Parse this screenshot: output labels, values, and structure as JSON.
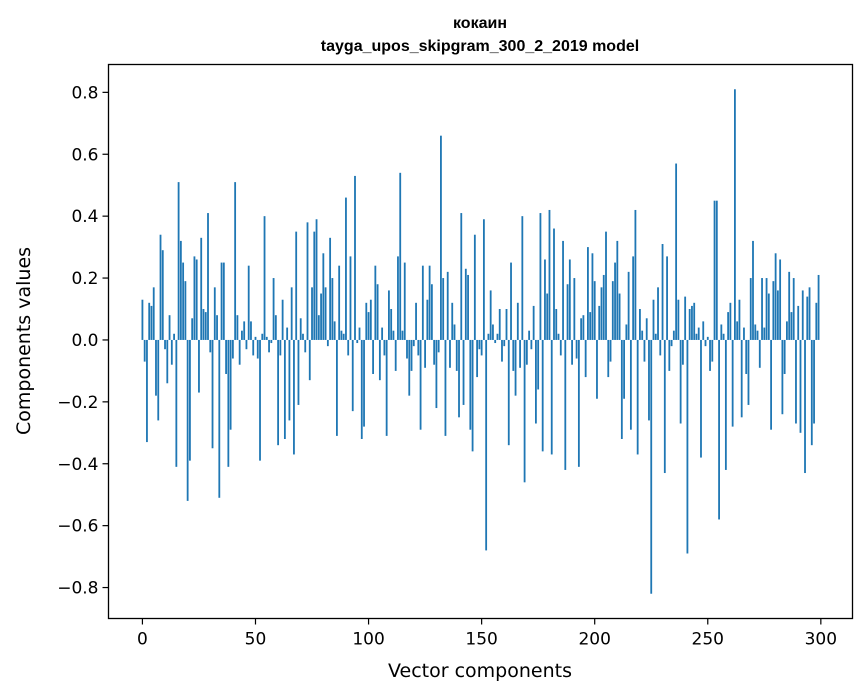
{
  "chart_data": {
    "type": "bar",
    "title": "кокаин",
    "subtitle": "tayga_upos_skipgram_300_2_2019 model",
    "xlabel": "Vector components",
    "ylabel": "Components values",
    "xlim": [
      -15,
      314
    ],
    "ylim": [
      -0.9,
      0.89
    ],
    "xticks": [
      0,
      50,
      100,
      150,
      200,
      250,
      300
    ],
    "xtick_labels": [
      "0",
      "50",
      "100",
      "150",
      "200",
      "250",
      "300"
    ],
    "yticks": [
      -0.8,
      -0.6,
      -0.4,
      -0.2,
      0.0,
      0.2,
      0.4,
      0.6,
      0.8
    ],
    "ytick_labels": [
      "−0.8",
      "−0.6",
      "−0.4",
      "−0.2",
      "0.0",
      "0.2",
      "0.4",
      "0.6",
      "0.8"
    ],
    "bar_color": "#1f77b4",
    "values": [
      0.13,
      -0.07,
      -0.33,
      0.12,
      0.11,
      0.17,
      -0.18,
      -0.26,
      0.34,
      0.29,
      -0.03,
      -0.14,
      0.08,
      -0.08,
      0.02,
      -0.41,
      0.51,
      0.32,
      0.25,
      0.19,
      -0.52,
      -0.39,
      0.07,
      0.27,
      0.26,
      -0.17,
      0.33,
      0.1,
      0.09,
      0.41,
      -0.04,
      -0.35,
      0.17,
      0.08,
      -0.51,
      0.25,
      0.25,
      -0.11,
      -0.41,
      -0.29,
      -0.06,
      0.51,
      0.08,
      -0.08,
      0.03,
      0.06,
      -0.03,
      0.24,
      0.06,
      -0.05,
      0.01,
      -0.06,
      -0.39,
      0.02,
      0.4,
      0.01,
      -0.04,
      -0.01,
      0.2,
      0.08,
      -0.34,
      -0.05,
      0.13,
      -0.32,
      0.04,
      -0.26,
      0.17,
      -0.37,
      0.35,
      -0.21,
      0.07,
      0.02,
      -0.04,
      0.38,
      -0.13,
      0.17,
      0.35,
      0.39,
      0.08,
      0.15,
      0.28,
      0.17,
      -0.02,
      0.33,
      0.2,
      0.06,
      -0.31,
      0.24,
      0.03,
      0.02,
      0.46,
      -0.05,
      0.27,
      -0.23,
      0.53,
      -0.01,
      0.04,
      -0.32,
      -0.28,
      0.12,
      0.09,
      0.13,
      -0.11,
      0.24,
      0.18,
      -0.13,
      0.04,
      -0.05,
      -0.31,
      0.16,
      0.1,
      0.03,
      -0.1,
      0.27,
      0.54,
      0.03,
      0.25,
      -0.06,
      -0.18,
      -0.1,
      -0.02,
      0.12,
      -0.05,
      -0.29,
      0.24,
      -0.09,
      0.13,
      0.24,
      0.18,
      -0.08,
      -0.22,
      -0.04,
      0.66,
      0.2,
      -0.31,
      0.22,
      -0.09,
      0.12,
      0.05,
      -0.1,
      -0.25,
      0.41,
      -0.21,
      0.23,
      0.21,
      -0.29,
      -0.36,
      0.34,
      -0.12,
      -0.03,
      -0.05,
      0.39,
      -0.68,
      0.02,
      0.16,
      0.05,
      -0.01,
      0.02,
      0.1,
      -0.07,
      -0.02,
      0.1,
      -0.34,
      0.25,
      -0.1,
      -0.18,
      0.12,
      -0.09,
      0.4,
      -0.46,
      -0.08,
      0.03,
      -0.03,
      0.11,
      -0.27,
      -0.16,
      0.41,
      -0.36,
      0.26,
      0.15,
      0.42,
      -0.37,
      0.36,
      0.1,
      0.02,
      -0.05,
      0.32,
      -0.42,
      0.18,
      0.26,
      -0.08,
      0.2,
      -0.06,
      -0.41,
      0.07,
      0.08,
      -0.12,
      0.3,
      0.09,
      0.28,
      0.19,
      -0.19,
      0.11,
      0.17,
      0.21,
      0.35,
      -0.12,
      -0.07,
      0.19,
      0.25,
      0.32,
      0.15,
      -0.32,
      -0.19,
      0.05,
      0.22,
      -0.29,
      0.27,
      0.42,
      -0.37,
      0.1,
      0.03,
      -0.07,
      0.07,
      -0.26,
      -0.82,
      0.13,
      0.02,
      0.17,
      -0.05,
      0.31,
      -0.43,
      0.27,
      -0.1,
      -0.02,
      0.03,
      0.57,
      0.13,
      -0.27,
      -0.08,
      0.14,
      -0.69,
      0.1,
      0.11,
      0.12,
      0.02,
      0.04,
      -0.38,
      0.06,
      -0.02,
      0.01,
      -0.1,
      -0.07,
      0.45,
      0.45,
      -0.58,
      0.05,
      0.02,
      -0.42,
      0.09,
      0.12,
      -0.28,
      0.81,
      0.06,
      0.13,
      -0.25,
      0.04,
      -0.11,
      -0.21,
      0.2,
      0.32,
      0.05,
      0.03,
      -0.09,
      0.2,
      0.04,
      0.2,
      0.15,
      -0.29,
      0.19,
      0.28,
      0.16,
      0.26,
      -0.24,
      -0.11,
      0.06,
      0.22,
      0.09,
      0.2,
      -0.27,
      0.11,
      -0.3,
      0.16,
      -0.43,
      0.14,
      0.17,
      -0.34,
      -0.27,
      0.12,
      0.21
    ]
  }
}
